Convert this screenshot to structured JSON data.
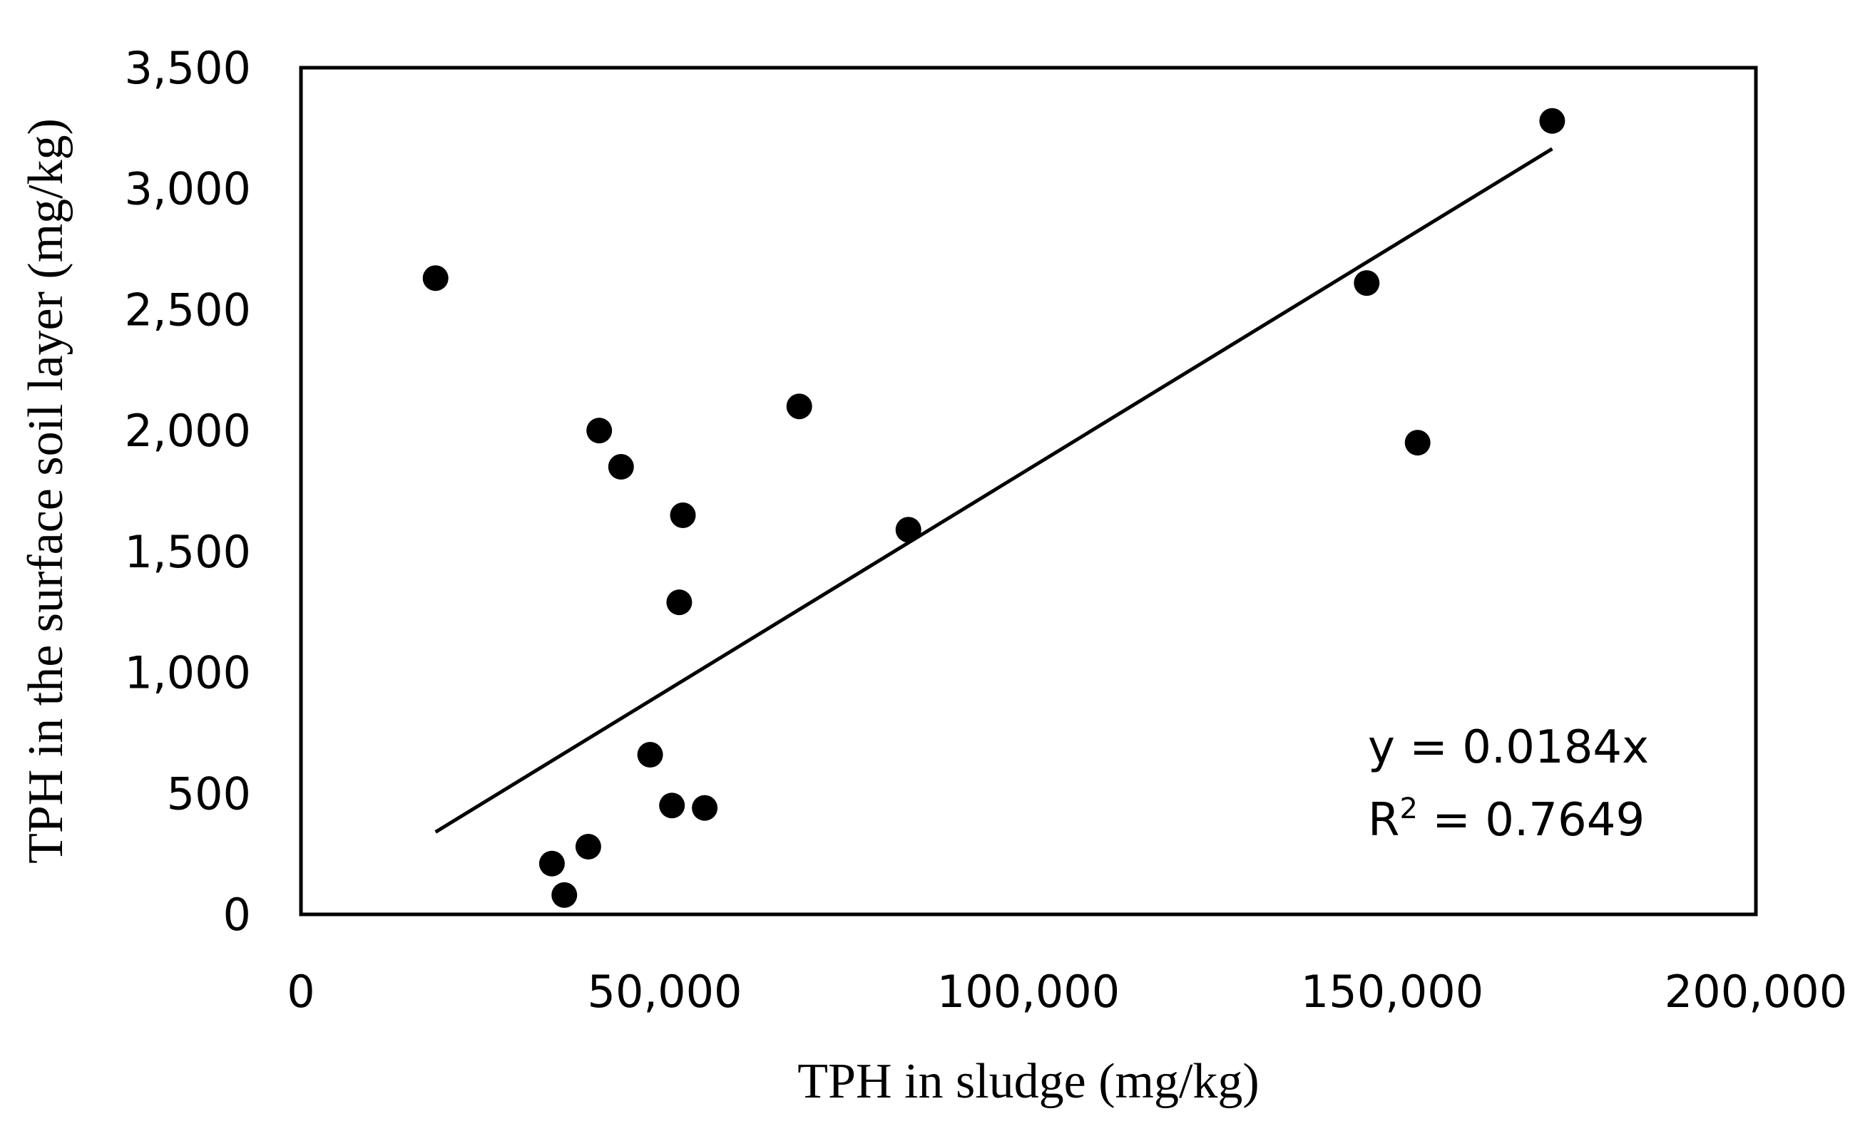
{
  "chart_data": {
    "type": "scatter",
    "title": "",
    "xlabel": "TPH in sludge (mg/kg)",
    "ylabel": "TPH in the surface soil layer (mg/kg)",
    "xlim": [
      0,
      200000
    ],
    "ylim": [
      0,
      3500
    ],
    "x_ticks": [
      0,
      50000,
      100000,
      150000,
      200000
    ],
    "x_tick_labels": [
      "0",
      "50,000",
      "100,000",
      "150,000",
      "200,000"
    ],
    "y_ticks": [
      0,
      500,
      1000,
      1500,
      2000,
      2500,
      3000,
      3500
    ],
    "y_tick_labels": [
      "0",
      "500",
      "1,000",
      "1,500",
      "2,000",
      "2,500",
      "3,000",
      "3,500"
    ],
    "grid": false,
    "legend": "none",
    "series": [
      {
        "name": "samples",
        "color": "#000000",
        "points": [
          {
            "x": 18500,
            "y": 2630
          },
          {
            "x": 34500,
            "y": 210
          },
          {
            "x": 36200,
            "y": 80
          },
          {
            "x": 39500,
            "y": 280
          },
          {
            "x": 41000,
            "y": 2000
          },
          {
            "x": 44000,
            "y": 1850
          },
          {
            "x": 48000,
            "y": 660
          },
          {
            "x": 51000,
            "y": 450
          },
          {
            "x": 52000,
            "y": 1290
          },
          {
            "x": 52500,
            "y": 1650
          },
          {
            "x": 55500,
            "y": 440
          },
          {
            "x": 68500,
            "y": 2100
          },
          {
            "x": 83500,
            "y": 1590
          },
          {
            "x": 146500,
            "y": 2610
          },
          {
            "x": 153500,
            "y": 1950
          },
          {
            "x": 172000,
            "y": 3280
          }
        ]
      }
    ],
    "trendline": {
      "color": "#000000",
      "slope": 0.0184,
      "intercept": 0,
      "x_start": 18500,
      "x_end": 172000
    },
    "annotations": {
      "equation": "y = 0.0184x",
      "r2_prefix": "R",
      "r2_sup": "2",
      "r2_suffix": " = 0.7649"
    }
  }
}
